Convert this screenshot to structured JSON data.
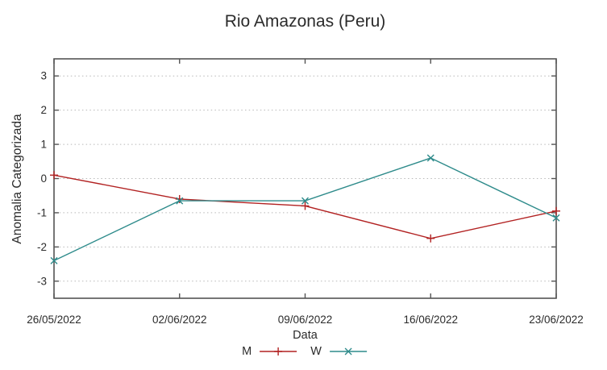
{
  "chart_data": {
    "type": "line",
    "title": "Rio Amazonas (Peru)",
    "xlabel": "Data",
    "ylabel": "Anomalia Categorizada",
    "categories": [
      "26/05/2022",
      "02/06/2022",
      "09/06/2022",
      "16/06/2022",
      "23/06/2022"
    ],
    "series": [
      {
        "name": "M",
        "marker": "plus",
        "color": "#b22222",
        "values": [
          0.1,
          -0.6,
          -0.8,
          -1.75,
          -0.95
        ]
      },
      {
        "name": "W",
        "marker": "cross",
        "color": "#2e8b8b",
        "values": [
          -2.4,
          -0.65,
          -0.65,
          0.6,
          -1.15
        ]
      }
    ],
    "ylim": [
      -3.5,
      3.5
    ],
    "yticks": [
      -3,
      -2,
      -1,
      0,
      1,
      2,
      3
    ],
    "grid": "horizontal-dotted",
    "legend_position": "bottom-center",
    "colors": {
      "background": "#ffffff",
      "border": "#545454",
      "grid": "#b8b8b8",
      "text": "#2b2b2b"
    }
  }
}
